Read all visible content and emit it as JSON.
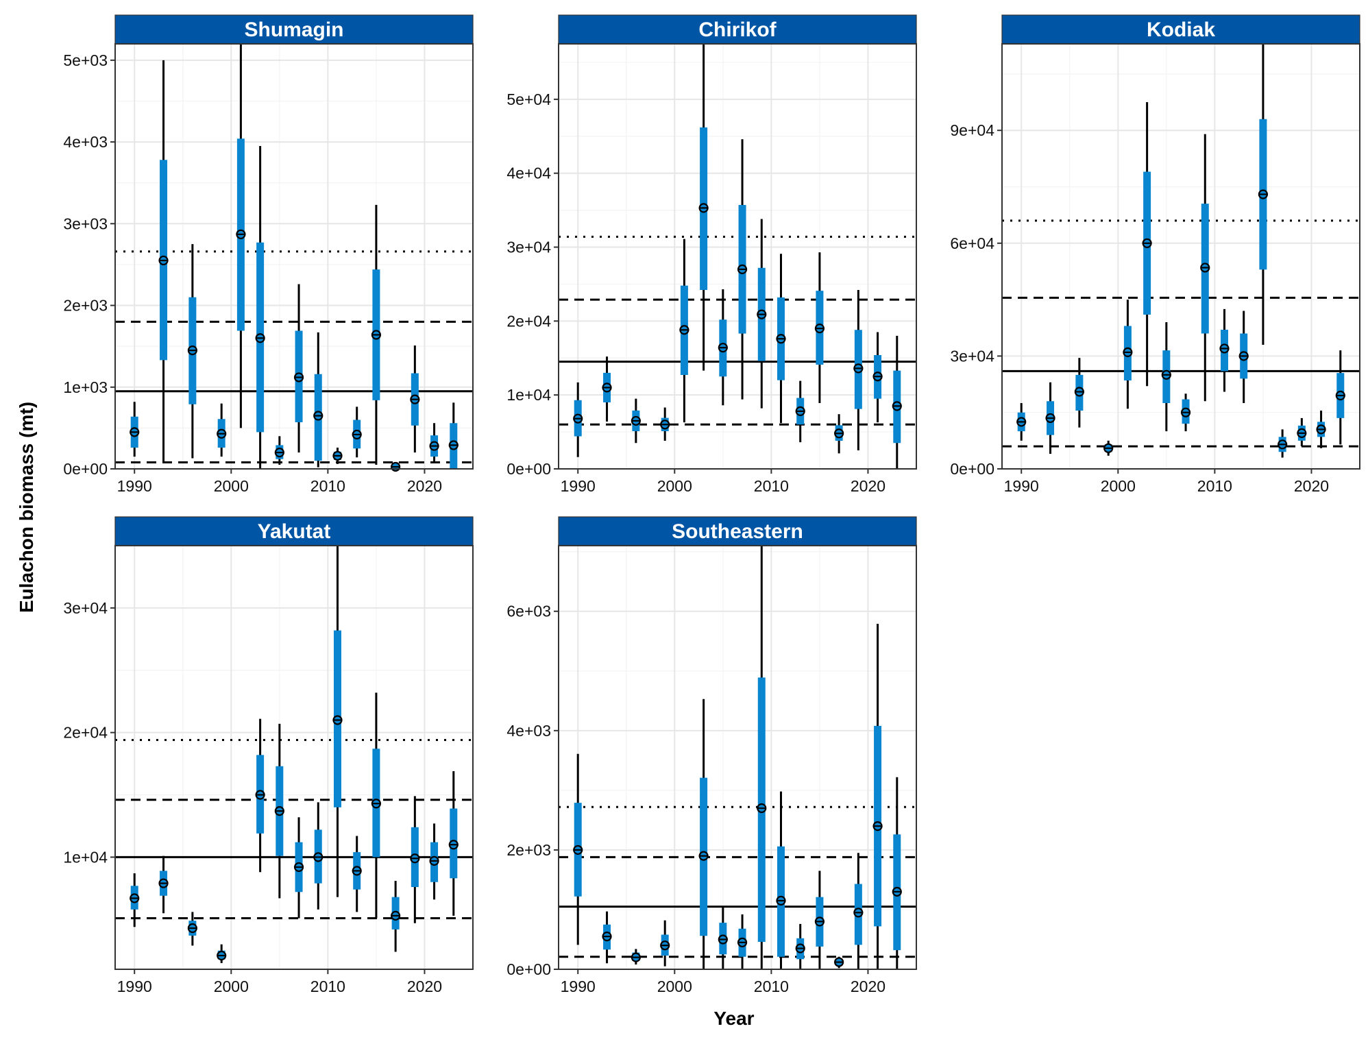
{
  "chart_data": {
    "type": "pointrange",
    "xlabel": "Year",
    "ylabel": "Eulachon biomass (mt)",
    "colors": {
      "strip": "#0055A5",
      "interval_50": "#0A86D0",
      "interval_95": "#000000",
      "point": "#000000",
      "grid_major": "#E6E6E6",
      "grid_minor": "#F3F3F3"
    },
    "reference_line_styles": [
      "solid",
      "dashed",
      "dashed",
      "dotted"
    ],
    "panels": [
      {
        "title": "Shumagin",
        "xlim": [
          1988,
          2025
        ],
        "ylim": [
          0,
          5200
        ],
        "x_ticks": [
          1990,
          2000,
          2010,
          2020
        ],
        "x_tick_labels": [
          "1990",
          "2000",
          "2010",
          "2020"
        ],
        "y_ticks": [
          0,
          1000,
          2000,
          3000,
          4000,
          5000
        ],
        "y_tick_labels": [
          "0e+00",
          "1e+03",
          "2e+03",
          "3e+03",
          "4e+03",
          "5e+03"
        ],
        "ref_lines": [
          {
            "style": "solid",
            "y": 950
          },
          {
            "style": "dashed",
            "y": 1800
          },
          {
            "style": "dashed",
            "y": 80
          },
          {
            "style": "dotted",
            "y": 2660
          }
        ],
        "years": [
          1990,
          1993,
          1996,
          1999,
          2001,
          2003,
          2005,
          2007,
          2009,
          2011,
          2013,
          2015,
          2017,
          2019,
          2021,
          2023
        ],
        "estimate": [
          450,
          2550,
          1450,
          430,
          2870,
          1600,
          200,
          1120,
          650,
          160,
          420,
          1640,
          25,
          850,
          280,
          290
        ],
        "lower_50": [
          260,
          1330,
          790,
          260,
          1690,
          450,
          120,
          570,
          100,
          110,
          250,
          840,
          10,
          530,
          150,
          0
        ],
        "upper_50": [
          640,
          3780,
          2100,
          610,
          4040,
          2770,
          290,
          1690,
          1160,
          210,
          600,
          2440,
          40,
          1170,
          410,
          560
        ],
        "lower_95": [
          150,
          80,
          130,
          150,
          500,
          0,
          50,
          200,
          20,
          60,
          140,
          50,
          0,
          200,
          70,
          0
        ],
        "upper_95": [
          820,
          5000,
          2750,
          800,
          5200,
          3950,
          400,
          2260,
          1670,
          260,
          760,
          3230,
          60,
          1510,
          560,
          810
        ]
      },
      {
        "title": "Chirikof",
        "xlim": [
          1988,
          2025
        ],
        "ylim": [
          0,
          57500
        ],
        "x_ticks": [
          1990,
          2000,
          2010,
          2020
        ],
        "x_tick_labels": [
          "1990",
          "2000",
          "2010",
          "2020"
        ],
        "y_ticks": [
          0,
          10000,
          20000,
          30000,
          40000,
          50000
        ],
        "y_tick_labels": [
          "0e+00",
          "1e+04",
          "2e+04",
          "3e+04",
          "4e+04",
          "5e+04"
        ],
        "ref_lines": [
          {
            "style": "solid",
            "y": 14500
          },
          {
            "style": "dashed",
            "y": 22900
          },
          {
            "style": "dashed",
            "y": 6000
          },
          {
            "style": "dotted",
            "y": 31400
          }
        ],
        "years": [
          1990,
          1993,
          1996,
          1999,
          2001,
          2003,
          2005,
          2007,
          2009,
          2011,
          2013,
          2015,
          2017,
          2019,
          2021,
          2023
        ],
        "estimate": [
          6800,
          11000,
          6500,
          6000,
          18800,
          35300,
          16400,
          27000,
          20900,
          17600,
          7800,
          19000,
          4800,
          13600,
          12500,
          8500
        ],
        "lower_50": [
          4400,
          9000,
          5100,
          5100,
          12700,
          24200,
          12500,
          18300,
          14600,
          12000,
          6000,
          14100,
          3800,
          8100,
          9500,
          3500
        ],
        "upper_50": [
          9300,
          13000,
          7900,
          6900,
          24800,
          46200,
          20200,
          35700,
          27200,
          23200,
          9600,
          24100,
          5900,
          18800,
          15400,
          13300
        ],
        "lower_95": [
          1600,
          6400,
          3500,
          3800,
          6300,
          13300,
          8600,
          9400,
          8200,
          6200,
          3600,
          8900,
          2100,
          2500,
          6300,
          0
        ],
        "upper_95": [
          11700,
          15200,
          9500,
          8300,
          31100,
          57500,
          24300,
          44600,
          33800,
          29100,
          11900,
          29300,
          7400,
          24200,
          18500,
          18000
        ]
      },
      {
        "title": "Kodiak",
        "xlim": [
          1988,
          2025
        ],
        "ylim": [
          0,
          113000
        ],
        "x_ticks": [
          1990,
          2000,
          2010,
          2020
        ],
        "x_tick_labels": [
          "1990",
          "2000",
          "2010",
          "2020"
        ],
        "y_ticks": [
          0,
          30000,
          60000,
          90000
        ],
        "y_tick_labels": [
          "0e+00",
          "3e+04",
          "6e+04",
          "9e+04"
        ],
        "ref_lines": [
          {
            "style": "solid",
            "y": 26000
          },
          {
            "style": "dashed",
            "y": 45500
          },
          {
            "style": "dashed",
            "y": 6000
          },
          {
            "style": "dotted",
            "y": 66000
          }
        ],
        "years": [
          1990,
          1993,
          1996,
          1999,
          2001,
          2003,
          2005,
          2007,
          2009,
          2011,
          2013,
          2015,
          2017,
          2019,
          2021,
          2023
        ],
        "estimate": [
          12500,
          13500,
          20500,
          5500,
          31000,
          60000,
          25000,
          15000,
          53500,
          32000,
          30000,
          73000,
          6500,
          9500,
          10500,
          19500
        ],
        "lower_50": [
          10000,
          9000,
          15500,
          4500,
          23500,
          41000,
          17500,
          12000,
          36000,
          26000,
          24000,
          53000,
          4500,
          7500,
          8500,
          13500
        ],
        "upper_50": [
          15000,
          18000,
          25000,
          6500,
          38000,
          79000,
          31500,
          18500,
          70500,
          37000,
          36000,
          93000,
          8500,
          11500,
          12500,
          25500
        ],
        "lower_95": [
          7500,
          4000,
          11000,
          3500,
          16000,
          22000,
          10000,
          10000,
          18000,
          20500,
          17500,
          33000,
          3000,
          6000,
          5500,
          6500
        ],
        "upper_95": [
          17500,
          23000,
          29500,
          7500,
          45000,
          97500,
          39000,
          20000,
          89000,
          42500,
          42000,
          113000,
          10500,
          13500,
          15500,
          31500
        ]
      },
      {
        "title": "Yakutat",
        "xlim": [
          1988,
          2025
        ],
        "ylim": [
          1000,
          35000
        ],
        "x_ticks": [
          1990,
          2000,
          2010,
          2020
        ],
        "x_tick_labels": [
          "1990",
          "2000",
          "2010",
          "2020"
        ],
        "y_ticks": [
          10000,
          20000,
          30000
        ],
        "y_tick_labels": [
          "1e+04",
          "2e+04",
          "3e+04"
        ],
        "ref_lines": [
          {
            "style": "solid",
            "y": 10000
          },
          {
            "style": "dashed",
            "y": 14600
          },
          {
            "style": "dashed",
            "y": 5100
          },
          {
            "style": "dotted",
            "y": 19400
          }
        ],
        "years": [
          1990,
          1993,
          1996,
          1999,
          2003,
          2005,
          2007,
          2009,
          2011,
          2013,
          2015,
          2017,
          2019,
          2021,
          2023
        ],
        "estimate": [
          6700,
          7900,
          4300,
          2100,
          15000,
          13700,
          9200,
          10000,
          21000,
          8900,
          14300,
          5300,
          9900,
          9700,
          11000
        ],
        "lower_50": [
          5800,
          6900,
          3700,
          1800,
          11900,
          10100,
          7200,
          7900,
          14000,
          7400,
          10000,
          4200,
          7600,
          8000,
          8300
        ],
        "upper_50": [
          7700,
          8900,
          4900,
          2500,
          18200,
          17300,
          11200,
          12200,
          28200,
          10400,
          18700,
          6800,
          12400,
          11200,
          13900
        ],
        "lower_95": [
          4400,
          5500,
          2900,
          1500,
          8800,
          6700,
          5100,
          5800,
          6800,
          5600,
          5100,
          2400,
          4700,
          6600,
          5300
        ],
        "upper_95": [
          8700,
          10100,
          5600,
          3000,
          21100,
          20700,
          13200,
          14400,
          35000,
          11700,
          23200,
          8100,
          14900,
          12700,
          16900
        ]
      },
      {
        "title": "Southeastern",
        "xlim": [
          1988,
          2025
        ],
        "ylim": [
          0,
          7100
        ],
        "x_ticks": [
          1990,
          2000,
          2010,
          2020
        ],
        "x_tick_labels": [
          "1990",
          "2000",
          "2010",
          "2020"
        ],
        "y_ticks": [
          0,
          2000,
          4000,
          6000
        ],
        "y_tick_labels": [
          "0e+00",
          "2e+03",
          "4e+03",
          "6e+03"
        ],
        "ref_lines": [
          {
            "style": "solid",
            "y": 1050
          },
          {
            "style": "dashed",
            "y": 1880
          },
          {
            "style": "dashed",
            "y": 210
          },
          {
            "style": "dotted",
            "y": 2720
          }
        ],
        "years": [
          1990,
          1993,
          1996,
          1999,
          2003,
          2005,
          2007,
          2009,
          2011,
          2013,
          2015,
          2017,
          2019,
          2021,
          2023
        ],
        "estimate": [
          2000,
          550,
          200,
          400,
          1900,
          500,
          450,
          2700,
          1150,
          350,
          800,
          120,
          950,
          2400,
          1300
        ],
        "lower_50": [
          1220,
          330,
          140,
          230,
          560,
          250,
          210,
          460,
          210,
          170,
          380,
          70,
          410,
          720,
          320
        ],
        "upper_50": [
          2790,
          750,
          280,
          580,
          3210,
          780,
          680,
          4890,
          2060,
          520,
          1210,
          170,
          1430,
          4080,
          2260
        ],
        "lower_95": [
          410,
          100,
          80,
          50,
          0,
          0,
          0,
          0,
          0,
          0,
          0,
          20,
          0,
          0,
          0
        ],
        "upper_95": [
          3610,
          970,
          340,
          820,
          4530,
          1060,
          920,
          7100,
          2980,
          760,
          1650,
          210,
          1950,
          5790,
          3220
        ]
      }
    ]
  }
}
